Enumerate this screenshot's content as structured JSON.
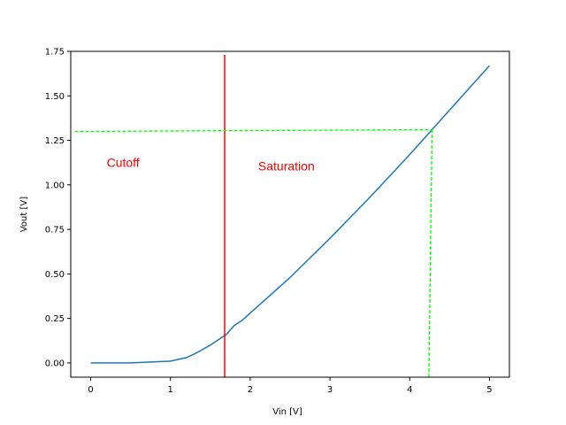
{
  "chart_data": {
    "type": "line",
    "title": "",
    "xlabel": "Vin [V]",
    "ylabel": "Vout [V]",
    "xlim": [
      -0.25,
      5.25
    ],
    "ylim": [
      -0.08,
      1.75
    ],
    "grid": false,
    "x_ticks": [
      0,
      1,
      2,
      3,
      4,
      5
    ],
    "y_ticks": [
      0.0,
      0.25,
      0.5,
      0.75,
      1.0,
      1.25,
      1.5,
      1.75
    ],
    "x_tick_labels": [
      "0",
      "1",
      "2",
      "3",
      "4",
      "5"
    ],
    "y_tick_labels": [
      "0.00",
      "0.25",
      "0.50",
      "0.75",
      "1.00",
      "1.25",
      "1.50",
      "1.75"
    ],
    "series": [
      {
        "color": "#1f77b4",
        "x": [
          0,
          0.5,
          1.0,
          1.2,
          1.3,
          1.5,
          1.7,
          1.8,
          1.9,
          2.0,
          2.5,
          3.0,
          3.5,
          4.0,
          4.5,
          5.0
        ],
        "y": [
          0.0,
          0.0,
          0.01,
          0.03,
          0.05,
          0.1,
          0.16,
          0.21,
          0.24,
          0.28,
          0.48,
          0.7,
          0.93,
          1.17,
          1.42,
          1.67
        ]
      }
    ],
    "threshold_line": {
      "x": 1.68,
      "y_range": [
        -0.08,
        1.73
      ],
      "color": "#ff0000"
    },
    "guide_lines": {
      "color": "#00ff00",
      "horizontal": {
        "x_range": [
          -0.2,
          4.28
        ],
        "y_range": [
          1.3,
          1.31
        ]
      },
      "vertical": {
        "x_range": [
          4.24,
          4.28
        ],
        "y_range": [
          -0.08,
          1.31
        ]
      }
    },
    "annotations": [
      {
        "text": "Cutoff",
        "x": 0.2,
        "y": 1.1,
        "color": "#ff0000"
      },
      {
        "text": "Saturation",
        "x": 2.1,
        "y": 1.08,
        "color": "#ff0000"
      }
    ]
  }
}
